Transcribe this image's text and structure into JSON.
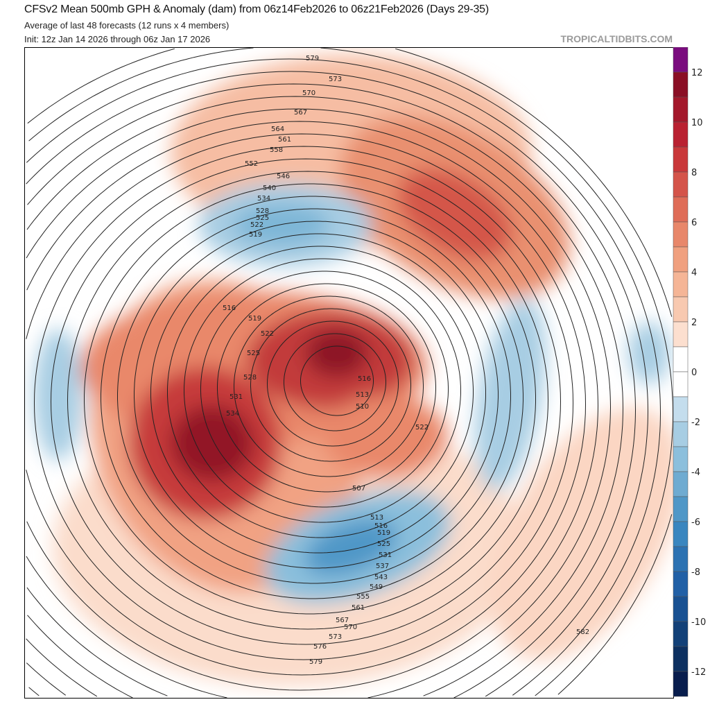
{
  "header": {
    "title": "CFSv2 Mean 500mb GPH & Anomaly (dam) from 06z14Feb2026 to 06z21Feb2026 (Days 29-35)",
    "subtitle": "Average of last 48 forecasts (12 runs x 4 members)",
    "init": "Init: 12z Jan 14 2026 through 06z Jan 17 2026",
    "brand": "TROPICALTIDBITS.COM"
  },
  "colorbar": {
    "tick_labels": [
      "12",
      "10",
      "8",
      "6",
      "4",
      "2",
      "0",
      "-2",
      "-4",
      "-6",
      "-8",
      "-10",
      "-12"
    ],
    "colors": [
      "#7a0c7e",
      "#8a0f25",
      "#a3182b",
      "#b92131",
      "#c9383a",
      "#d4544a",
      "#df6d58",
      "#e8876a",
      "#f0a07f",
      "#f5b596",
      "#f8c9b0",
      "#fcdfcf",
      "#ffffff",
      "#ffffff",
      "#c4dded",
      "#a7cde3",
      "#8cbfdc",
      "#6fabd1",
      "#5097c7",
      "#3a86bf",
      "#2c72b2",
      "#2160a6",
      "#195192",
      "#134178",
      "#0d3060",
      "#081d4d"
    ]
  },
  "contour_labels": [
    "579",
    "573",
    "570",
    "567",
    "564",
    "561",
    "558",
    "552",
    "546",
    "540",
    "534",
    "528",
    "525",
    "522",
    "519",
    "516",
    "519",
    "522",
    "525",
    "528",
    "531",
    "534",
    "516",
    "513",
    "510",
    "522",
    "507",
    "513",
    "516",
    "519",
    "525",
    "531",
    "537",
    "543",
    "549",
    "555",
    "561",
    "567",
    "570",
    "573",
    "576",
    "579",
    "582"
  ]
}
